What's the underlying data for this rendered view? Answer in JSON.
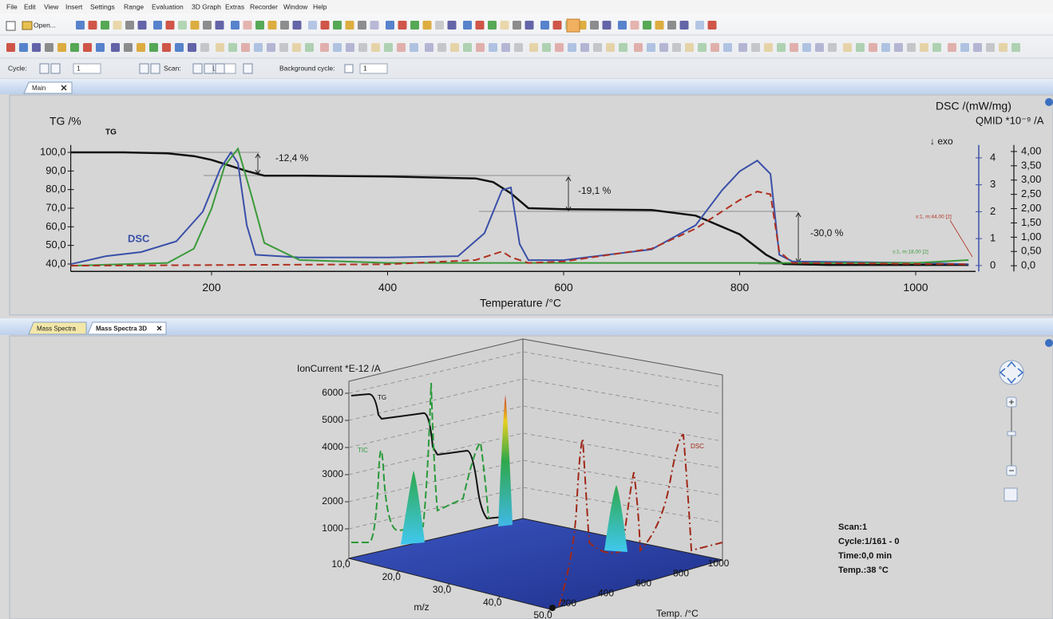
{
  "menu": [
    "File",
    "Edit",
    "View",
    "Insert",
    "Settings",
    "Range",
    "Evaluation",
    "3D Graph",
    "Extras",
    "Recorder",
    "Window",
    "Help"
  ],
  "toolbar": {
    "open": "Open..."
  },
  "cycle_bar": {
    "cycle_label": "Cycle:",
    "cycle_value": "1",
    "scan_label": "Scan:",
    "scan_value": "1",
    "background_label": "Background cycle:",
    "background_value": "1"
  },
  "tabs_top": [
    "Main"
  ],
  "tabs_bottom": [
    "Mass Spectra",
    "Mass Spectra 3D"
  ],
  "chart_data": {
    "type": "line",
    "x_label": "Temperature /°C",
    "y_label": "TG /%",
    "y2_label": "DSC /(mW/mg)",
    "y3_label": "QMID *10⁻⁹ /A",
    "exo_label": "↓ exo",
    "xlim": [
      40,
      1068
    ],
    "xticks": [
      200,
      400,
      600,
      800,
      1000
    ],
    "ylim": [
      36,
      104
    ],
    "yticks": [
      {
        "value": 40,
        "label": "40,0"
      },
      {
        "value": 50,
        "label": "50,0"
      },
      {
        "value": 60,
        "label": "60,0"
      },
      {
        "value": 70,
        "label": "70,0"
      },
      {
        "value": 80,
        "label": "80,0"
      },
      {
        "value": 90,
        "label": "90,0"
      },
      {
        "value": 100,
        "label": "100,0"
      }
    ],
    "y2lim": [
      -0.22,
      4.48
    ],
    "y2ticks": [
      0,
      1,
      2,
      3,
      4
    ],
    "y3lim": [
      -0.2,
      4.23
    ],
    "y3ticks": [
      {
        "value": 0,
        "label": "0,0"
      },
      {
        "value": 0.5,
        "label": "0,50"
      },
      {
        "value": 1,
        "label": "1,00"
      },
      {
        "value": 1.5,
        "label": "1,50"
      },
      {
        "value": 2,
        "label": "2,00"
      },
      {
        "value": 2.5,
        "label": "2,50"
      },
      {
        "value": 3,
        "label": "3,00"
      },
      {
        "value": 3.5,
        "label": "3,50"
      },
      {
        "value": 4,
        "label": "4,00"
      }
    ],
    "annotations": [
      "-12,4 %",
      "-19,1 %",
      "-30,0 %"
    ],
    "series": [
      {
        "name": "TG",
        "color": "#111111",
        "axis": "y",
        "line_style": "solid",
        "x": [
          40,
          100,
          150,
          180,
          200,
          220,
          240,
          260,
          300,
          400,
          500,
          520,
          540,
          560,
          600,
          700,
          750,
          800,
          830,
          850,
          900,
          1000,
          1060
        ],
        "values": [
          100,
          100,
          99.5,
          98,
          96,
          93,
          90,
          87.5,
          87.5,
          87,
          86,
          84,
          78,
          70,
          69.5,
          69,
          66,
          56,
          45,
          40,
          39.5,
          39.5,
          39.5
        ]
      },
      {
        "name": "DSC",
        "color": "#3a50a8",
        "axis": "y2",
        "line_style": "solid",
        "x": [
          40,
          80,
          120,
          160,
          190,
          210,
          222,
          230,
          240,
          250,
          300,
          400,
          480,
          510,
          530,
          540,
          550,
          560,
          600,
          700,
          750,
          780,
          800,
          820,
          835,
          845,
          860,
          1000,
          1060
        ],
        "values": [
          0.05,
          0.35,
          0.5,
          0.9,
          2,
          3.6,
          4.2,
          3.8,
          1.5,
          0.4,
          0.3,
          0.3,
          0.35,
          1.2,
          2.8,
          2.9,
          0.8,
          0.2,
          0.2,
          0.6,
          1.5,
          2.8,
          3.5,
          3.9,
          3.4,
          0.4,
          0.15,
          0.1,
          0.05
        ]
      },
      {
        "name": "s:1, m:18,00 [2]",
        "color": "#3a9a3a",
        "axis": "y3",
        "line_style": "solid",
        "x": [
          40,
          150,
          180,
          200,
          215,
          230,
          245,
          260,
          300,
          400,
          1000,
          1060
        ],
        "values": [
          0,
          0.1,
          0.6,
          2,
          3.5,
          4.1,
          2.5,
          0.8,
          0.2,
          0.1,
          0.1,
          0.2
        ]
      },
      {
        "name": "s:1, m:44,00 [2]",
        "color": "#b03020",
        "axis": "y3",
        "line_style": "dashed",
        "x": [
          40,
          400,
          500,
          530,
          540,
          560,
          600,
          700,
          750,
          800,
          820,
          835,
          845,
          860,
          1060
        ],
        "values": [
          0,
          0.05,
          0.2,
          0.5,
          0.3,
          0.1,
          0.15,
          0.6,
          1.3,
          2.3,
          2.6,
          2.5,
          0.5,
          0.1,
          0.05
        ]
      }
    ]
  },
  "spectra_3d": {
    "z_label": "IonCurrent *E-12 /A",
    "zticks": [
      1000,
      2000,
      3000,
      4000,
      5000,
      6000
    ],
    "x_label": "m/z",
    "xticks": [
      {
        "value": 10,
        "label": "10,0"
      },
      {
        "value": 20,
        "label": "20,0"
      },
      {
        "value": 30,
        "label": "30,0"
      },
      {
        "value": 40,
        "label": "40,0"
      },
      {
        "value": 50,
        "label": "50,0"
      }
    ],
    "y_label": "Temp. /°C",
    "yticks": [
      200,
      400,
      600,
      800,
      1000
    ],
    "curve_labels": [
      "TG",
      "TIC",
      "DSC"
    ]
  },
  "info": [
    "Scan:1",
    "Cycle:1/161 - 0",
    "Time:0,0 min",
    "Temp.:38 °C"
  ]
}
